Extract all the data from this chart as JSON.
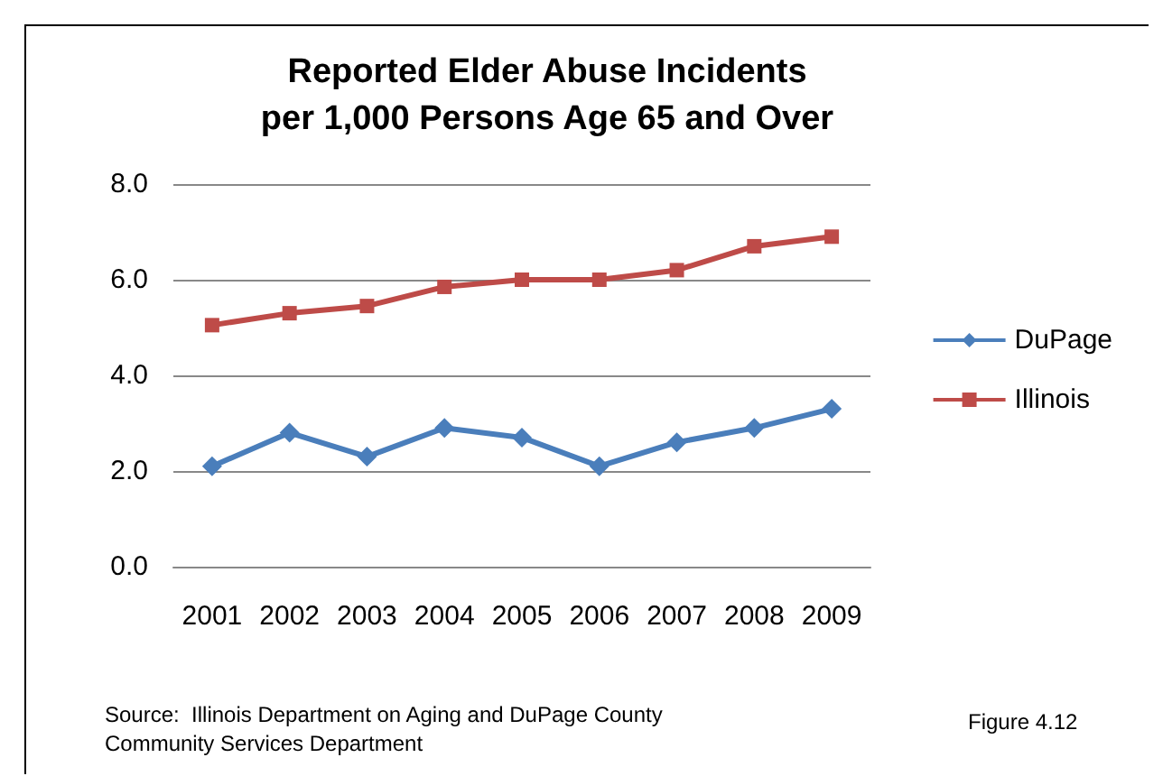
{
  "chart_data": {
    "type": "line",
    "title": "Reported Elder Abuse Incidents\nper 1,000 Persons Age 65 and Over",
    "categories": [
      "2001",
      "2002",
      "2003",
      "2004",
      "2005",
      "2006",
      "2007",
      "2008",
      "2009"
    ],
    "series": [
      {
        "name": "DuPage",
        "color": "#4a7ebb",
        "marker": "diamond",
        "values": [
          2.1,
          2.8,
          2.3,
          2.9,
          2.7,
          2.1,
          2.6,
          2.9,
          3.3
        ]
      },
      {
        "name": "Illinois",
        "color": "#be4b48",
        "marker": "square",
        "values": [
          5.05,
          5.3,
          5.45,
          5.85,
          6.0,
          6.0,
          6.2,
          6.7,
          6.9
        ]
      }
    ],
    "ylim": [
      0,
      8
    ],
    "yticks": [
      {
        "value": 0,
        "label": "0.0"
      },
      {
        "value": 2,
        "label": "2.0"
      },
      {
        "value": 4,
        "label": "4.0"
      },
      {
        "value": 6,
        "label": "6.0"
      },
      {
        "value": 8,
        "label": "8.0"
      }
    ],
    "grid": "y",
    "legend": "right",
    "annotations": [
      "Source:  Illinois Department on Aging and DuPage County\nCommunity Services Department",
      "Figure 4.12"
    ]
  }
}
